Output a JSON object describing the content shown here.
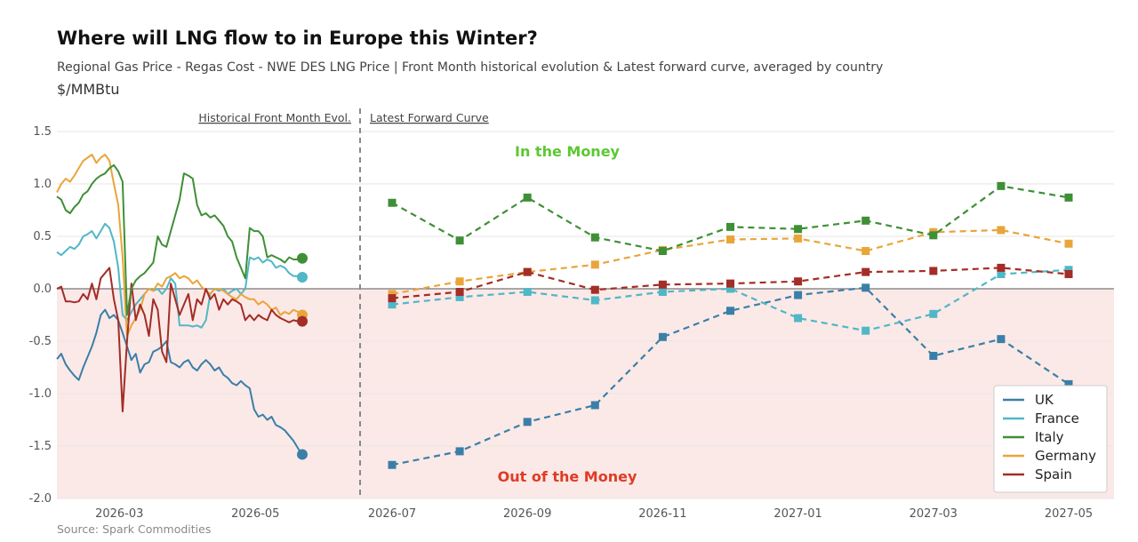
{
  "chart_data": {
    "type": "line",
    "title": "Where will LNG flow to in Europe this Winter?",
    "subtitle": "Regional Gas Price - Regas Cost - NWE DES LNG Price | Front Month historical evolution & Latest forward curve, averaged by country",
    "ylabel": "$/MMBtu",
    "ylim": [
      -2.0,
      1.5
    ],
    "yticks": [
      "1.5",
      "1.0",
      "0.5",
      "0.0",
      "-0.5",
      "-1.0",
      "-1.5",
      "-2.0"
    ],
    "ytick_values": [
      1.5,
      1.0,
      0.5,
      0.0,
      -0.5,
      -1.0,
      -1.5,
      -2.0
    ],
    "grid": true,
    "legend_position": "bottom-right",
    "source": "Source: Spark Commodities",
    "regions": {
      "historical_label": "Historical Front Month Evol.",
      "forward_label": "Latest Forward Curve",
      "in_the_money": "In the Money",
      "out_of_the_money": "Out of the Money"
    },
    "historical_ticks": [
      "2026-03",
      "2026-05"
    ],
    "forward_ticks": [
      "2026-07",
      "2026-09",
      "2026-11",
      "2027-01",
      "2027-03",
      "2027-05"
    ],
    "historical_period": [
      "2026-02-01",
      "2026-05-22"
    ],
    "forward_months": [
      "2026-07",
      "2026-08",
      "2026-09",
      "2026-10",
      "2026-11",
      "2026-12",
      "2027-01",
      "2027-02",
      "2027-03",
      "2027-04",
      "2027-05"
    ],
    "series": [
      {
        "name": "UK",
        "color": "#3a7fa8",
        "historical": [
          -0.67,
          -0.62,
          -0.72,
          -0.78,
          -0.83,
          -0.87,
          -0.75,
          -0.65,
          -0.55,
          -0.42,
          -0.25,
          -0.2,
          -0.28,
          -0.25,
          -0.3,
          -0.42,
          -0.55,
          -0.68,
          -0.62,
          -0.8,
          -0.72,
          -0.7,
          -0.6,
          -0.58,
          -0.55,
          -0.5,
          -0.7,
          -0.72,
          -0.75,
          -0.7,
          -0.68,
          -0.75,
          -0.78,
          -0.72,
          -0.68,
          -0.72,
          -0.78,
          -0.75,
          -0.82,
          -0.85,
          -0.9,
          -0.92,
          -0.88,
          -0.92,
          -0.95,
          -1.15,
          -1.22,
          -1.2,
          -1.25,
          -1.22,
          -1.3,
          -1.32,
          -1.35,
          -1.4,
          -1.45,
          -1.52,
          -1.58
        ],
        "forward": [
          -1.68,
          -1.55,
          -1.27,
          -1.11,
          -0.46,
          -0.21,
          -0.06,
          0.01,
          -0.64,
          -0.48,
          -0.91
        ]
      },
      {
        "name": "France",
        "color": "#50b7c6",
        "historical": [
          0.35,
          0.32,
          0.36,
          0.4,
          0.38,
          0.42,
          0.5,
          0.52,
          0.55,
          0.48,
          0.55,
          0.62,
          0.58,
          0.45,
          0.2,
          -0.25,
          -0.3,
          -0.22,
          -0.15,
          -0.1,
          -0.05,
          0.0,
          -0.02,
          0.0,
          -0.05,
          0.0,
          0.1,
          0.05,
          -0.35,
          -0.35,
          -0.35,
          -0.36,
          -0.35,
          -0.37,
          -0.3,
          -0.05,
          0.0,
          -0.02,
          0.0,
          -0.05,
          -0.02,
          0.0,
          -0.05,
          0.0,
          0.3,
          0.28,
          0.3,
          0.25,
          0.28,
          0.26,
          0.2,
          0.22,
          0.2,
          0.15,
          0.12,
          0.12,
          0.11
        ],
        "forward": [
          -0.15,
          -0.08,
          -0.03,
          -0.11,
          -0.03,
          0.0,
          -0.28,
          -0.4,
          -0.24,
          0.14,
          0.18
        ]
      },
      {
        "name": "Italy",
        "color": "#3f8f36",
        "historical": [
          0.88,
          0.85,
          0.75,
          0.72,
          0.78,
          0.82,
          0.9,
          0.93,
          1.0,
          1.05,
          1.08,
          1.1,
          1.15,
          1.18,
          1.12,
          1.02,
          -0.25,
          0.0,
          0.08,
          0.12,
          0.15,
          0.2,
          0.25,
          0.5,
          0.42,
          0.4,
          0.55,
          0.7,
          0.85,
          1.1,
          1.08,
          1.05,
          0.8,
          0.7,
          0.72,
          0.68,
          0.7,
          0.65,
          0.6,
          0.5,
          0.45,
          0.3,
          0.2,
          0.1,
          0.58,
          0.55,
          0.55,
          0.5,
          0.3,
          0.32,
          0.3,
          0.28,
          0.25,
          0.3,
          0.28,
          0.28,
          0.29
        ],
        "forward": [
          0.82,
          0.46,
          0.87,
          0.49,
          0.36,
          0.59,
          0.57,
          0.65,
          0.51,
          0.98,
          0.87
        ]
      },
      {
        "name": "Germany",
        "color": "#e9a53a",
        "historical": [
          0.92,
          1.0,
          1.05,
          1.02,
          1.08,
          1.15,
          1.22,
          1.25,
          1.28,
          1.2,
          1.25,
          1.28,
          1.22,
          1.0,
          0.8,
          0.3,
          -0.45,
          -0.35,
          -0.28,
          -0.2,
          -0.05,
          0.0,
          -0.02,
          0.05,
          0.02,
          0.1,
          0.12,
          0.15,
          0.1,
          0.12,
          0.1,
          0.05,
          0.08,
          0.02,
          -0.02,
          -0.05,
          0.0,
          0.0,
          -0.02,
          -0.05,
          -0.08,
          -0.1,
          -0.05,
          -0.08,
          -0.1,
          -0.1,
          -0.15,
          -0.12,
          -0.15,
          -0.2,
          -0.18,
          -0.25,
          -0.22,
          -0.24,
          -0.2,
          -0.22,
          -0.25
        ],
        "forward": [
          -0.05,
          0.07,
          0.16,
          0.23,
          0.37,
          0.47,
          0.48,
          0.36,
          0.54,
          0.56,
          0.43
        ]
      },
      {
        "name": "Spain",
        "color": "#a32d27",
        "historical": [
          0.0,
          0.02,
          -0.12,
          -0.12,
          -0.13,
          -0.12,
          -0.05,
          -0.1,
          0.05,
          -0.1,
          0.1,
          0.15,
          0.2,
          -0.1,
          -0.3,
          -1.17,
          -0.5,
          0.05,
          -0.3,
          -0.15,
          -0.25,
          -0.45,
          -0.1,
          -0.2,
          -0.6,
          -0.7,
          0.05,
          -0.1,
          -0.25,
          -0.15,
          -0.05,
          -0.3,
          -0.1,
          -0.15,
          0.0,
          -0.1,
          -0.05,
          -0.2,
          -0.1,
          -0.15,
          -0.1,
          -0.12,
          -0.15,
          -0.3,
          -0.25,
          -0.3,
          -0.25,
          -0.28,
          -0.3,
          -0.2,
          -0.25,
          -0.28,
          -0.3,
          -0.32,
          -0.3,
          -0.31,
          -0.31
        ],
        "forward": [
          -0.09,
          -0.03,
          0.16,
          -0.01,
          0.04,
          0.05,
          0.07,
          0.16,
          0.17,
          0.2,
          0.14
        ]
      }
    ]
  }
}
